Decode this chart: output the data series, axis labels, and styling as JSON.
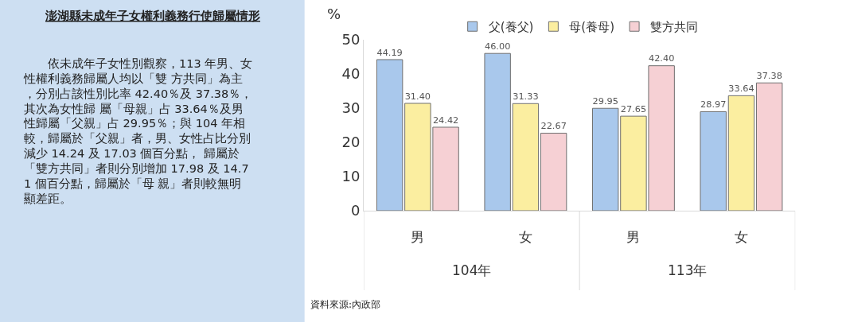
{
  "chart_data": {
    "type": "bar",
    "title": "澎湖縣未成年子女權利義務行使歸屬情形",
    "subtitle": "依未成年子女性別觀察，113 年男、女性權利義務歸屬人均以「雙 方共同」為主，分別占該性別比率 42.40％及 37.38％，其次為女性歸 屬「母親」占 33.64％及男性歸屬「父親」占 29.95％；與 104 年相較，歸屬於「父親」者，男、女性占比分別減少 14.24 及 17.03 個百分點， 歸屬於「雙方共同」者則分別增加 17.98 及 14.71 個百分點，歸屬於「母 親」者則較無明顯差距。",
    "ylabel": "%",
    "categories": [
      "男",
      "女",
      "男",
      "女"
    ],
    "series": [
      {
        "name": "父(養父)",
        "color": "#a9c8ec",
        "values": [
          44.19,
          46.0,
          29.95,
          28.97
        ],
        "value_labels": [
          "44.19",
          "46.00",
          "29.95",
          "28.97"
        ]
      },
      {
        "name": "母(養母)",
        "color": "#fbeea0",
        "values": [
          31.4,
          31.33,
          27.65,
          33.64
        ],
        "value_labels": [
          "31.40",
          "31.33",
          "27.65",
          "33.64"
        ]
      },
      {
        "name": "雙方共同",
        "color": "#f6d0d4",
        "values": [
          24.42,
          22.67,
          42.4,
          37.38
        ],
        "value_labels": [
          "24.42",
          "22.67",
          "42.40",
          "37.38"
        ]
      }
    ],
    "ylim": [
      0,
      50
    ],
    "yticks": [
      0,
      10,
      20,
      30,
      40,
      50
    ],
    "legend": "top",
    "annotations": [
      "104年",
      "113年",
      "資料來源:內政部"
    ]
  }
}
